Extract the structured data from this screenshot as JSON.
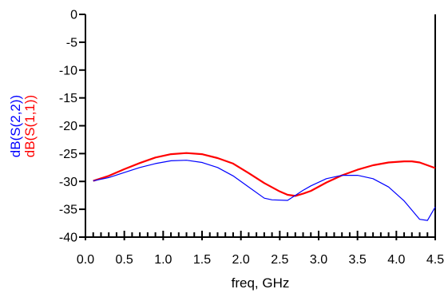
{
  "chart_data": {
    "type": "line",
    "title": "",
    "xlabel": "freq, GHz",
    "ylabels": [
      "dB(S(2,2))",
      "dB(S(1,1))"
    ],
    "xlim": [
      0.0,
      4.5
    ],
    "ylim": [
      -40,
      0
    ],
    "x_ticks": [
      "0.0",
      "0.5",
      "1.0",
      "1.5",
      "2.0",
      "2.5",
      "3.0",
      "3.5",
      "4.0",
      "4.5"
    ],
    "y_ticks": [
      "0",
      "-5",
      "-10",
      "-15",
      "-20",
      "-25",
      "-30",
      "-35",
      "-40"
    ],
    "x_minor_step": 0.1,
    "grid": false,
    "legend": "none",
    "series": [
      {
        "name": "dB(S(1,1))",
        "color": "#ff0000",
        "x": [
          0.1,
          0.3,
          0.5,
          0.7,
          0.9,
          1.1,
          1.3,
          1.5,
          1.7,
          1.9,
          2.1,
          2.3,
          2.5,
          2.6,
          2.7,
          2.8,
          2.9,
          3.1,
          3.3,
          3.5,
          3.7,
          3.9,
          4.1,
          4.2,
          4.3,
          4.5
        ],
        "y": [
          -29.9,
          -29.0,
          -27.8,
          -26.7,
          -25.7,
          -25.1,
          -24.9,
          -25.1,
          -25.8,
          -26.8,
          -28.5,
          -30.3,
          -31.8,
          -32.4,
          -32.6,
          -32.2,
          -31.7,
          -30.2,
          -28.9,
          -27.9,
          -27.1,
          -26.6,
          -26.4,
          -26.4,
          -26.6,
          -27.6
        ]
      },
      {
        "name": "dB(S(2,2))",
        "color": "#0000ff",
        "x": [
          0.1,
          0.3,
          0.5,
          0.7,
          0.9,
          1.1,
          1.3,
          1.5,
          1.7,
          1.9,
          2.1,
          2.3,
          2.4,
          2.6,
          2.7,
          2.8,
          2.9,
          3.1,
          3.3,
          3.5,
          3.7,
          3.9,
          4.1,
          4.3,
          4.4,
          4.5
        ],
        "y": [
          -29.9,
          -29.3,
          -28.4,
          -27.5,
          -26.8,
          -26.3,
          -26.2,
          -26.6,
          -27.5,
          -29.0,
          -31.0,
          -33.0,
          -33.3,
          -33.4,
          -32.5,
          -31.6,
          -30.8,
          -29.5,
          -28.9,
          -28.9,
          -29.5,
          -31.0,
          -33.5,
          -36.8,
          -37.0,
          -34.6
        ]
      }
    ]
  }
}
